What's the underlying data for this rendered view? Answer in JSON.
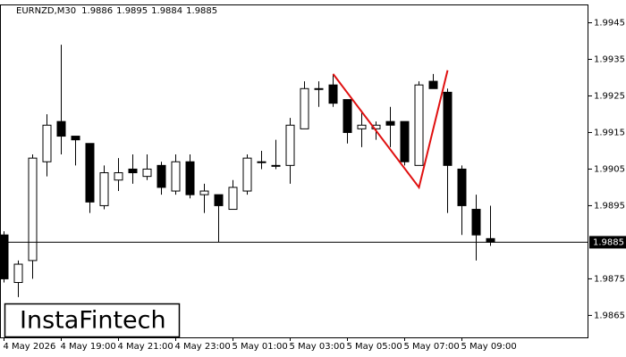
{
  "chart_data": {
    "type": "candlestick",
    "title": "EURNZD,M30",
    "watermark": "InstaFintech",
    "categories": [
      "4 May 2026",
      null,
      null,
      null,
      "4 May 19:00",
      null,
      null,
      null,
      "4 May 21:00",
      null,
      null,
      null,
      "4 May 23:00",
      null,
      null,
      null,
      "5 May 01:00",
      null,
      null,
      null,
      "5 May 03:00",
      null,
      null,
      null,
      "5 May 05:00",
      null,
      null,
      null,
      "5 May 07:00",
      null,
      null,
      null,
      "5 May 09:00",
      null,
      null
    ],
    "open": [
      1.9887,
      1.9874,
      1.988,
      1.9907,
      1.9918,
      1.9914,
      1.9912,
      1.9895,
      1.9902,
      1.9905,
      1.9903,
      1.9906,
      1.9899,
      1.9907,
      1.9898,
      1.9898,
      1.9894,
      1.9899,
      1.9907,
      1.9906,
      1.9906,
      1.9916,
      1.9927,
      1.9928,
      1.9924,
      1.9916,
      1.9916,
      1.9918,
      1.9918,
      1.9906,
      1.9929,
      1.9926,
      1.9905,
      1.9894,
      1.9886
    ],
    "high": [
      1.9888,
      1.988,
      1.9909,
      1.992,
      1.9939,
      1.9914,
      1.9912,
      1.9906,
      1.9908,
      1.9909,
      1.9909,
      1.9907,
      1.9909,
      1.9909,
      1.9901,
      1.9898,
      1.9902,
      1.9909,
      1.991,
      1.9913,
      1.9919,
      1.9929,
      1.9929,
      1.9931,
      1.9924,
      1.9921,
      1.9918,
      1.9922,
      1.9918,
      1.9929,
      1.9931,
      1.9927,
      1.9906,
      1.9898,
      1.9895
    ],
    "low": [
      1.9874,
      1.987,
      1.9875,
      1.9903,
      1.9909,
      1.9906,
      1.9893,
      1.9894,
      1.9899,
      1.9901,
      1.9902,
      1.9898,
      1.9898,
      1.9897,
      1.9893,
      1.9885,
      1.9894,
      1.9898,
      1.9905,
      1.9905,
      1.9901,
      1.9916,
      1.9922,
      1.9922,
      1.9912,
      1.9911,
      1.9913,
      1.9911,
      1.9906,
      1.9906,
      1.9927,
      1.9893,
      1.9887,
      1.988,
      1.9884
    ],
    "close": [
      1.9875,
      1.9879,
      1.9908,
      1.9917,
      1.9914,
      1.9913,
      1.9896,
      1.9904,
      1.9904,
      1.9904,
      1.9905,
      1.99,
      1.9907,
      1.9898,
      1.9899,
      1.9895,
      1.99,
      1.9908,
      1.9907,
      1.9906,
      1.9917,
      1.9927,
      1.9927,
      1.9923,
      1.9915,
      1.9917,
      1.9917,
      1.9917,
      1.9907,
      1.9928,
      1.9927,
      1.9906,
      1.9895,
      1.9887,
      1.9885
    ],
    "up_color": "#ffffff",
    "down_color": "#000000",
    "pattern": {
      "color": "#e01010",
      "x": [
        23,
        29,
        31
      ],
      "values": [
        1.9931,
        1.99,
        1.9932
      ]
    },
    "last_price": 1.9885,
    "ylim": [
      1.9859,
      1.995
    ],
    "yticks": [
      1.9865,
      1.9875,
      1.9895,
      1.9905,
      1.9915,
      1.9925,
      1.9935,
      1.9945
    ]
  }
}
